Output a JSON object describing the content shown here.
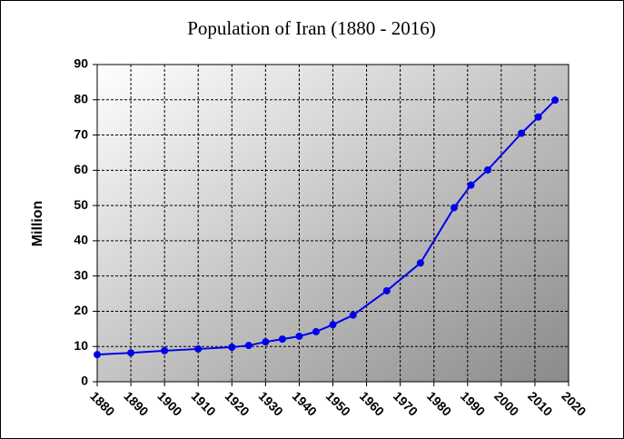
{
  "chart_data": {
    "type": "line",
    "title": "Population of  Iran (1880 - 2016)",
    "y_label": "Million",
    "x": [
      1880,
      1890,
      1900,
      1910,
      1920,
      1925,
      1930,
      1935,
      1940,
      1945,
      1950,
      1956,
      1966,
      1976,
      1986,
      1991,
      1996,
      2006,
      2011,
      2016
    ],
    "values": [
      7.7,
      8.2,
      8.8,
      9.3,
      9.8,
      10.3,
      11.3,
      12.1,
      12.9,
      14.2,
      16.2,
      18.9,
      25.8,
      33.7,
      49.4,
      55.8,
      60.1,
      70.5,
      75.1,
      79.9
    ],
    "color": "#0000ee",
    "xlim": [
      1880,
      2020
    ],
    "xticks": [
      1880,
      1890,
      1900,
      1910,
      1920,
      1930,
      1940,
      1950,
      1960,
      1970,
      1980,
      1990,
      2000,
      2010,
      2020
    ],
    "ylim": [
      0,
      90
    ],
    "yticks": [
      0,
      10,
      20,
      30,
      40,
      50,
      60,
      70,
      80,
      90
    ],
    "grid": true
  }
}
